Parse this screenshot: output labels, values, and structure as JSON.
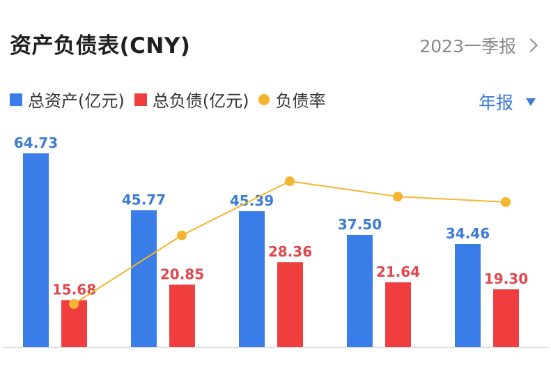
{
  "header": {
    "title": "资产负债表(CNY)",
    "period_label": "2023一季报",
    "frequency_label": "年报"
  },
  "colors": {
    "assets": "#3b7de8",
    "liabilities": "#f03e3e",
    "ratio": "#f5b52e",
    "assets_label": "#3a7bd5",
    "liabilities_label": "#e0474c",
    "axis": "#dddddd"
  },
  "chart_data": {
    "type": "bar",
    "categories": [
      "",
      "",
      "",
      "",
      ""
    ],
    "series": [
      {
        "name": "总资产(亿元)",
        "type": "bar",
        "values": [
          64.73,
          45.77,
          45.39,
          37.5,
          34.46
        ],
        "labels": [
          "64.73",
          "45.77",
          "45.39",
          "37.50",
          "34.46"
        ]
      },
      {
        "name": "总负债(亿元)",
        "type": "bar",
        "values": [
          15.68,
          20.85,
          28.36,
          21.64,
          19.3
        ],
        "labels": [
          "15.68",
          "20.85",
          "28.36",
          "21.64",
          "19.30"
        ]
      },
      {
        "name": "负债率",
        "type": "line",
        "values": [
          24.2,
          45.6,
          62.5,
          57.7,
          56.0
        ]
      }
    ],
    "ylim": [
      0,
      70
    ],
    "ratio_ylim": [
      0,
      100
    ],
    "legend": "top-left",
    "grid": false
  }
}
